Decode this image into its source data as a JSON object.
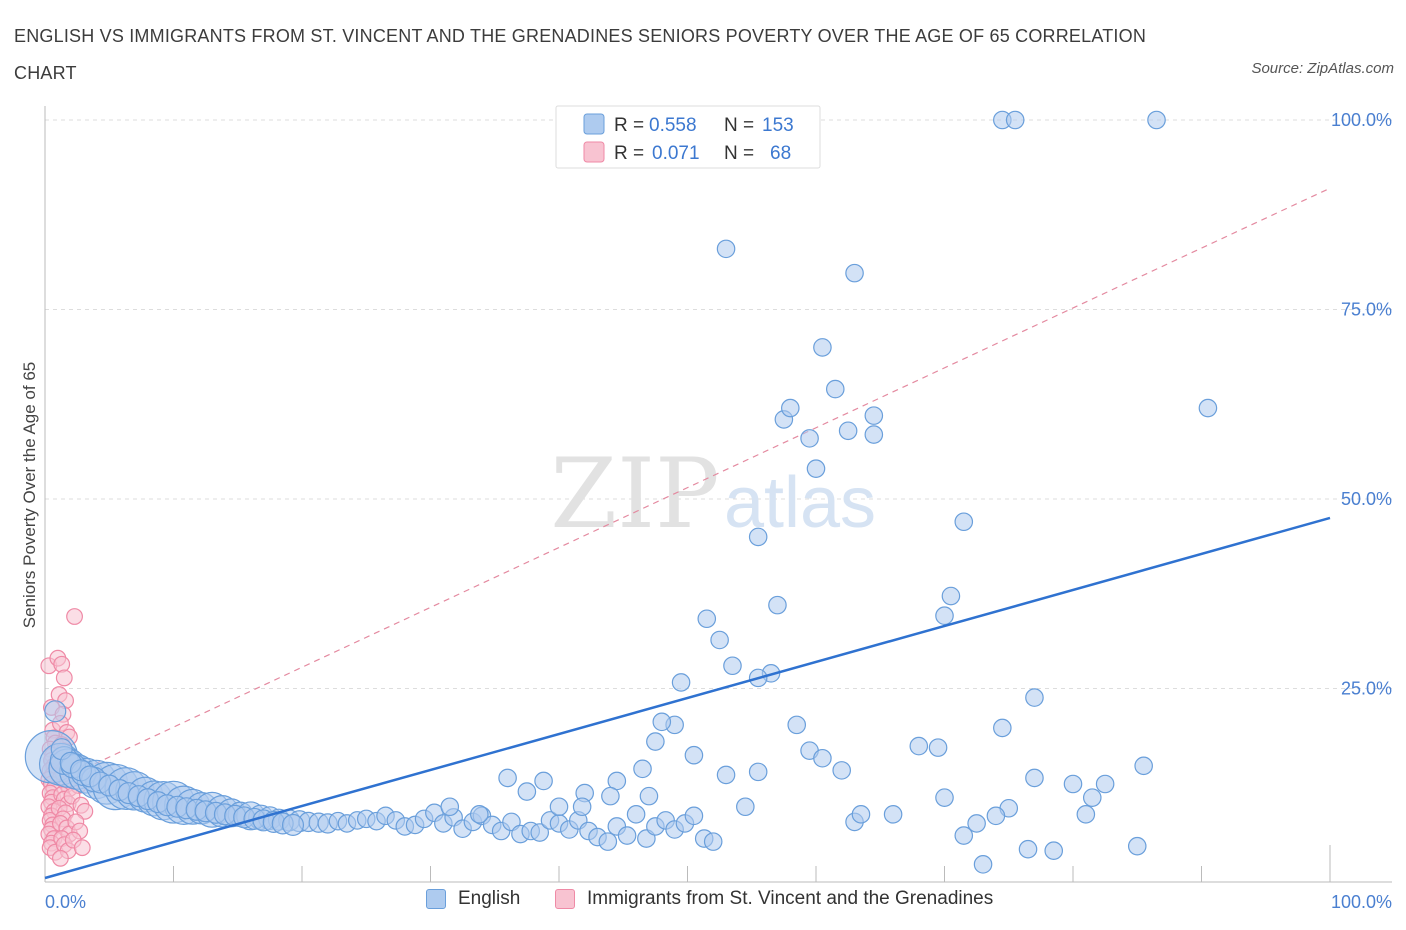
{
  "title": "ENGLISH VS IMMIGRANTS FROM ST. VINCENT AND THE GRENADINES SENIORS POVERTY OVER THE AGE OF 65 CORRELATION CHART",
  "source": "Source: ZipAtlas.com",
  "watermark": {
    "zip": "ZIP",
    "atlas": "atlas"
  },
  "colors": {
    "blue_fill": "#aecbef",
    "blue_stroke": "#6a9fdb",
    "blue_line": "#2f72d0",
    "pink_fill": "#f8c3d1",
    "pink_stroke": "#ef8aa6",
    "pink_line": "#e48aa0",
    "grid": "#dddddd",
    "axis_text": "#4a7fd0"
  },
  "stats_legend": [
    {
      "r_label": "R =",
      "r_value": "0.558",
      "n_label": "N =",
      "n_value": "153",
      "color": "blue"
    },
    {
      "r_label": "R =",
      "r_value": "0.071",
      "n_label": "N =",
      "n_value": "68",
      "color": "pink"
    }
  ],
  "chart_data": {
    "type": "scatter",
    "title": "ENGLISH VS IMMIGRANTS FROM ST. VINCENT AND THE GRENADINES SENIORS POVERTY OVER THE AGE OF 65 CORRELATION CHART",
    "xlabel": "",
    "ylabel": "Seniors Poverty Over the Age of 65",
    "xlim": [
      0,
      100
    ],
    "ylim": [
      0,
      100
    ],
    "x_tick_labels": [
      "0.0%",
      "100.0%"
    ],
    "y_tick_labels": [
      "25.0%",
      "50.0%",
      "75.0%",
      "100.0%"
    ],
    "y_ticks": [
      25,
      50,
      75,
      100
    ],
    "grid": true,
    "legend_position": "bottom",
    "series": [
      {
        "name": "English",
        "color": "blue",
        "trend": {
          "x": [
            0,
            100
          ],
          "y": [
            0,
            47.5
          ]
        },
        "points": [
          [
            0.5,
            16,
            30
          ],
          [
            1.2,
            15,
            24
          ],
          [
            1.8,
            14.5,
            22
          ],
          [
            2.5,
            14,
            20
          ],
          [
            3.2,
            13.5,
            20
          ],
          [
            4,
            13,
            22
          ],
          [
            4.8,
            12.5,
            24
          ],
          [
            5.5,
            12,
            26
          ],
          [
            6.3,
            11.8,
            24
          ],
          [
            7,
            11.5,
            22
          ],
          [
            7.8,
            11,
            20
          ],
          [
            8.5,
            10.5,
            20
          ],
          [
            9.2,
            10.2,
            22
          ],
          [
            10,
            10,
            24
          ],
          [
            10.8,
            9.6,
            22
          ],
          [
            11.5,
            9.4,
            20
          ],
          [
            12.2,
            9.2,
            18
          ],
          [
            13,
            9,
            20
          ],
          [
            13.8,
            8.8,
            18
          ],
          [
            14.5,
            8.6,
            16
          ],
          [
            15.2,
            8.4,
            14
          ],
          [
            16,
            8.2,
            16
          ],
          [
            16.8,
            8,
            14
          ],
          [
            17.5,
            7.9,
            13
          ],
          [
            18.2,
            7.7,
            12
          ],
          [
            19,
            7.6,
            12
          ],
          [
            19.8,
            7.5,
            12
          ],
          [
            20.5,
            7.4,
            11
          ],
          [
            21.3,
            7.3,
            11
          ],
          [
            22,
            7.2,
            11
          ],
          [
            22.8,
            7.5,
            10
          ],
          [
            23.5,
            7.2,
            10
          ],
          [
            24.3,
            7.6,
            10
          ],
          [
            25,
            7.8,
            10
          ],
          [
            25.8,
            7.5,
            10
          ],
          [
            26.5,
            8.2,
            10
          ],
          [
            27.3,
            7.6,
            10
          ],
          [
            28,
            6.8,
            10
          ],
          [
            28.8,
            7,
            10
          ],
          [
            29.5,
            7.8,
            10
          ],
          [
            30.3,
            8.6,
            10
          ],
          [
            31,
            7.2,
            10
          ],
          [
            31.8,
            8,
            10
          ],
          [
            32.5,
            6.5,
            10
          ],
          [
            33.3,
            7.4,
            10
          ],
          [
            34,
            8.2,
            10
          ],
          [
            34.8,
            7,
            10
          ],
          [
            35.5,
            6.2,
            10
          ],
          [
            36.3,
            7.4,
            10
          ],
          [
            37,
            5.8,
            10
          ],
          [
            37.8,
            6.2,
            10
          ],
          [
            38.5,
            6,
            10
          ],
          [
            39.3,
            7.6,
            10
          ],
          [
            40,
            7.2,
            10
          ],
          [
            40.8,
            6.4,
            10
          ],
          [
            41.5,
            7.6,
            10
          ],
          [
            42.3,
            6.2,
            10
          ],
          [
            43,
            5.4,
            10
          ],
          [
            43.8,
            4.8,
            10
          ],
          [
            44.5,
            6.8,
            10
          ],
          [
            45.3,
            5.6,
            10
          ],
          [
            46,
            8.4,
            10
          ],
          [
            46.8,
            5.2,
            10
          ],
          [
            47.5,
            6.8,
            10
          ],
          [
            48.3,
            7.6,
            10
          ],
          [
            49,
            6.4,
            10
          ],
          [
            49.8,
            7.2,
            10
          ],
          [
            50.5,
            8.2,
            10
          ],
          [
            51.3,
            5.2,
            10
          ],
          [
            52,
            4.8,
            10
          ],
          [
            1.5,
            15.5,
            16
          ],
          [
            2.2,
            14.8,
            14
          ],
          [
            3,
            13.8,
            14
          ],
          [
            3.8,
            13,
            14
          ],
          [
            0.8,
            22,
            12
          ],
          [
            1.3,
            17,
            12
          ],
          [
            2,
            15.2,
            12
          ],
          [
            2.8,
            14.2,
            12
          ],
          [
            3.5,
            13.4,
            12
          ],
          [
            4.3,
            12.6,
            12
          ],
          [
            5,
            12.2,
            12
          ],
          [
            5.8,
            11.6,
            12
          ],
          [
            6.5,
            11.2,
            12
          ],
          [
            7.3,
            10.8,
            12
          ],
          [
            8,
            10.4,
            12
          ],
          [
            8.8,
            10,
            12
          ],
          [
            9.5,
            9.6,
            12
          ],
          [
            10.3,
            9.4,
            12
          ],
          [
            11,
            9.2,
            12
          ],
          [
            11.8,
            9,
            12
          ],
          [
            12.5,
            8.8,
            12
          ],
          [
            13.3,
            8.6,
            12
          ],
          [
            14,
            8.4,
            12
          ],
          [
            14.8,
            8.2,
            12
          ],
          [
            15.5,
            8,
            12
          ],
          [
            16.3,
            7.8,
            12
          ],
          [
            17,
            7.6,
            12
          ],
          [
            17.8,
            7.4,
            12
          ],
          [
            18.5,
            7.2,
            12
          ],
          [
            19.3,
            7,
            12
          ],
          [
            44.5,
            12.8,
            10
          ],
          [
            44,
            10.8,
            10
          ],
          [
            37.5,
            11.4,
            10
          ],
          [
            36,
            13.2,
            10
          ],
          [
            40,
            9.4,
            10
          ],
          [
            42,
            11.2,
            10
          ],
          [
            38.8,
            12.8,
            10
          ],
          [
            41.8,
            9.4,
            10
          ],
          [
            33.8,
            8.4,
            10
          ],
          [
            31.5,
            9.4,
            10
          ],
          [
            49.5,
            25.8,
            10
          ],
          [
            49,
            20.2,
            10
          ],
          [
            48,
            20.6,
            10
          ],
          [
            47.5,
            18,
            10
          ],
          [
            46.5,
            14.4,
            10
          ],
          [
            47,
            10.8,
            10
          ],
          [
            50.5,
            16.2,
            10
          ],
          [
            53,
            13.6,
            10
          ],
          [
            54.5,
            9.4,
            10
          ],
          [
            55.5,
            14,
            10
          ],
          [
            58.5,
            20.2,
            10
          ],
          [
            59.5,
            16.8,
            10
          ],
          [
            60.5,
            15.8,
            10
          ],
          [
            62,
            14.2,
            10
          ],
          [
            63,
            7.4,
            10
          ],
          [
            63.5,
            8.4,
            10
          ],
          [
            66,
            8.4,
            10
          ],
          [
            68,
            17.4,
            10
          ],
          [
            69.5,
            17.2,
            10
          ],
          [
            70,
            10.6,
            10
          ],
          [
            71.5,
            5.6,
            10
          ],
          [
            72.5,
            7.2,
            10
          ],
          [
            73,
            1.8,
            10
          ],
          [
            75,
            9.2,
            10
          ],
          [
            76.5,
            3.8,
            10
          ],
          [
            77,
            13.2,
            10
          ],
          [
            78.5,
            3.6,
            10
          ],
          [
            80,
            12.4,
            10
          ],
          [
            81,
            8.4,
            10
          ],
          [
            81.5,
            10.6,
            10
          ],
          [
            82.5,
            12.4,
            10
          ],
          [
            85,
            4.2,
            10
          ],
          [
            85.5,
            14.8,
            10
          ],
          [
            90.5,
            62,
            10
          ],
          [
            77,
            23.8,
            10
          ],
          [
            74.5,
            19.8,
            10
          ],
          [
            74,
            8.2,
            10
          ],
          [
            70.5,
            37.2,
            10
          ],
          [
            71.5,
            47,
            10
          ],
          [
            70,
            34.6,
            10
          ],
          [
            55.5,
            45,
            10
          ],
          [
            57,
            36,
            10
          ],
          [
            57.5,
            60.5,
            10
          ],
          [
            58,
            62,
            10
          ],
          [
            59.5,
            58,
            10
          ],
          [
            60,
            54,
            10
          ],
          [
            60.5,
            70,
            10
          ],
          [
            61.5,
            64.5,
            10
          ],
          [
            62.5,
            59,
            10
          ],
          [
            64.5,
            58.5,
            10
          ],
          [
            64.5,
            61,
            10
          ],
          [
            53,
            83,
            10
          ],
          [
            63,
            79.8,
            10
          ],
          [
            56.5,
            27,
            10
          ],
          [
            55.5,
            26.4,
            10
          ],
          [
            53.5,
            28,
            10
          ],
          [
            52.5,
            31.4,
            10
          ],
          [
            51.5,
            34.2,
            10
          ],
          [
            86.5,
            100,
            10
          ],
          [
            74.5,
            100,
            10
          ],
          [
            75.5,
            100,
            10
          ]
        ]
      },
      {
        "name": "Immigrants from St. Vincent and the Grenadines",
        "color": "pink",
        "trend": {
          "x": [
            0,
            100
          ],
          "y": [
            12,
            91
          ]
        },
        "points": [
          [
            0.3,
            28,
            9
          ],
          [
            0.5,
            22.5,
            9
          ],
          [
            0.6,
            19.5,
            9
          ],
          [
            0.7,
            18.5,
            9
          ],
          [
            0.8,
            17.8,
            9
          ],
          [
            0.4,
            17,
            9
          ],
          [
            0.6,
            16.2,
            9
          ],
          [
            0.5,
            15.5,
            9
          ],
          [
            0.7,
            14.8,
            9
          ],
          [
            0.4,
            14.2,
            9
          ],
          [
            0.6,
            13.6,
            9
          ],
          [
            0.3,
            13,
            9
          ],
          [
            0.5,
            12.4,
            9
          ],
          [
            0.7,
            11.8,
            9
          ],
          [
            0.4,
            11.2,
            9
          ],
          [
            0.6,
            10.6,
            9
          ],
          [
            0.5,
            10,
            9
          ],
          [
            0.3,
            9.4,
            9
          ],
          [
            0.7,
            8.8,
            9
          ],
          [
            0.5,
            8.2,
            9
          ],
          [
            0.4,
            7.6,
            9
          ],
          [
            0.6,
            7,
            9
          ],
          [
            0.5,
            6.4,
            9
          ],
          [
            0.3,
            5.8,
            9
          ],
          [
            0.7,
            5.2,
            9
          ],
          [
            0.5,
            4.6,
            9
          ],
          [
            0.4,
            4,
            9
          ],
          [
            0.8,
            3.4,
            9
          ],
          [
            1,
            29,
            9
          ],
          [
            1.3,
            28.2,
            9
          ],
          [
            1.5,
            26.4,
            9
          ],
          [
            1.1,
            24.2,
            9
          ],
          [
            1.6,
            23.4,
            9
          ],
          [
            1.4,
            21.6,
            9
          ],
          [
            1.2,
            20.4,
            9
          ],
          [
            1.7,
            19.2,
            9
          ],
          [
            1.9,
            18.6,
            9
          ],
          [
            1.3,
            17.6,
            9
          ],
          [
            1.5,
            16.8,
            9
          ],
          [
            1.8,
            16,
            9
          ],
          [
            1.1,
            15.4,
            9
          ],
          [
            1.6,
            14.6,
            9
          ],
          [
            1.4,
            13.8,
            9
          ],
          [
            1.2,
            13.2,
            9
          ],
          [
            1.7,
            12.4,
            9
          ],
          [
            1.9,
            11.8,
            9
          ],
          [
            1.3,
            11,
            9
          ],
          [
            1.5,
            10.4,
            9
          ],
          [
            1.8,
            9.8,
            9
          ],
          [
            1.1,
            9.2,
            9
          ],
          [
            1.6,
            8.6,
            9
          ],
          [
            1.4,
            7.8,
            9
          ],
          [
            1.2,
            7.2,
            9
          ],
          [
            1.7,
            6.6,
            9
          ],
          [
            1.9,
            5.8,
            9
          ],
          [
            1.3,
            5.2,
            9
          ],
          [
            1.5,
            4.4,
            9
          ],
          [
            1.8,
            3.6,
            9
          ],
          [
            1.2,
            2.6,
            9
          ],
          [
            2.3,
            34.5,
            9
          ],
          [
            2.6,
            12.2,
            9
          ],
          [
            2.1,
            10.8,
            9
          ],
          [
            2.8,
            9.6,
            9
          ],
          [
            3.1,
            8.8,
            9
          ],
          [
            2.4,
            7.4,
            9
          ],
          [
            2.7,
            6.2,
            9
          ],
          [
            2.2,
            5,
            9
          ],
          [
            2.9,
            4,
            9
          ]
        ]
      }
    ]
  }
}
